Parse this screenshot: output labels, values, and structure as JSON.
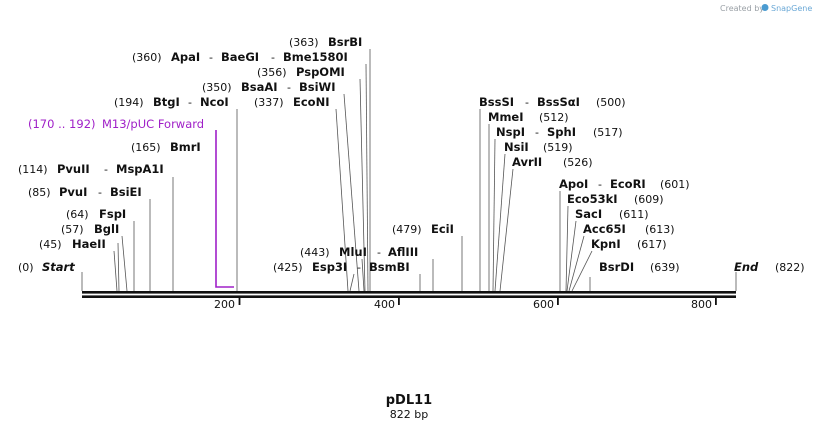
{
  "credit": {
    "prefix": "Created by",
    "brand": "SnapGene"
  },
  "map": {
    "title": "pDL11",
    "length_label": "822 bp",
    "start": {
      "pos": "(0)",
      "label": "Start"
    },
    "end": {
      "pos": "(822)",
      "label": "End"
    },
    "ticks": [
      "200",
      "400",
      "600",
      "800"
    ],
    "primer": {
      "pos": "(170 .. 192)",
      "name": "M13/pUC Forward"
    },
    "sites": [
      {
        "pos": "(363)",
        "names": [
          "BsrBI"
        ]
      },
      {
        "pos": "(360)",
        "names": [
          "ApaI",
          "BaeGI",
          "Bme1580I"
        ]
      },
      {
        "pos": "(356)",
        "names": [
          "PspOMI"
        ]
      },
      {
        "pos": "(350)",
        "names": [
          "BsaAI",
          "BsiWI"
        ]
      },
      {
        "pos": "(194)",
        "names": [
          "BtgI",
          "NcoI"
        ]
      },
      {
        "pos": "(337)",
        "names": [
          "EcoNI"
        ]
      },
      {
        "pos": "(165)",
        "names": [
          "BmrI"
        ]
      },
      {
        "pos": "(114)",
        "names": [
          "PvuII",
          "MspA1I"
        ]
      },
      {
        "pos": "(85)",
        "names": [
          "PvuI",
          "BsiEI"
        ]
      },
      {
        "pos": "(64)",
        "names": [
          "FspI"
        ]
      },
      {
        "pos": "(57)",
        "names": [
          "BglI"
        ]
      },
      {
        "pos": "(45)",
        "names": [
          "HaeII"
        ]
      },
      {
        "pos": "(443)",
        "names": [
          "MluI",
          "AflIII"
        ]
      },
      {
        "pos": "(425)",
        "names": [
          "Esp3I",
          "BsmBI"
        ]
      },
      {
        "pos": "(479)",
        "names": [
          "EciI"
        ]
      },
      {
        "pos": "(500)",
        "names": [
          "BssSI",
          "BssSαI"
        ]
      },
      {
        "pos": "(512)",
        "names": [
          "MmeI"
        ]
      },
      {
        "pos": "(517)",
        "names": [
          "NspI",
          "SphI"
        ]
      },
      {
        "pos": "(519)",
        "names": [
          "NsiI"
        ]
      },
      {
        "pos": "(526)",
        "names": [
          "AvrII"
        ]
      },
      {
        "pos": "(601)",
        "names": [
          "ApoI",
          "EcoRI"
        ]
      },
      {
        "pos": "(609)",
        "names": [
          "Eco53kI"
        ]
      },
      {
        "pos": "(611)",
        "names": [
          "SacI"
        ]
      },
      {
        "pos": "(613)",
        "names": [
          "Acc65I"
        ]
      },
      {
        "pos": "(617)",
        "names": [
          "KpnI"
        ]
      },
      {
        "pos": "(639)",
        "names": [
          "BsrDI"
        ]
      }
    ]
  }
}
